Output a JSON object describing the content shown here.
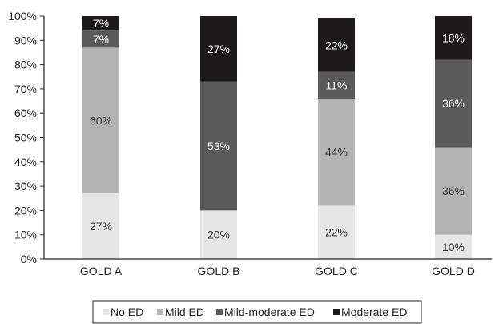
{
  "chart_data": {
    "type": "bar",
    "stacked": true,
    "categories": [
      "GOLD A",
      "GOLD B",
      "GOLD C",
      "GOLD D"
    ],
    "series": [
      {
        "name": "No ED",
        "color": "#e6e6e6",
        "label_color": "#333333",
        "values": [
          27,
          20,
          22,
          10
        ],
        "labels": [
          "27%",
          "20%",
          "22%",
          "10%"
        ]
      },
      {
        "name": "Mild ED",
        "color": "#b3b3b3",
        "label_color": "#333333",
        "values": [
          60,
          0,
          44,
          36
        ],
        "labels": [
          "60%",
          "",
          "44%",
          "36%"
        ]
      },
      {
        "name": "Mild-moderate ED",
        "color": "#5a5a5a",
        "label_color": "#ffffff",
        "values": [
          7,
          53,
          11,
          36
        ],
        "labels": [
          "7%",
          "53%",
          "11%",
          "36%"
        ]
      },
      {
        "name": "Moderate ED",
        "color": "#1e1a1b",
        "label_color": "#ffffff",
        "values": [
          7,
          27,
          22,
          18
        ],
        "labels": [
          "7%",
          "27%",
          "22%",
          "18%"
        ]
      }
    ],
    "ylim": [
      0,
      100
    ],
    "yticks": [
      "0%",
      "10%",
      "20%",
      "30%",
      "40%",
      "50%",
      "60%",
      "70%",
      "80%",
      "90%",
      "100%"
    ],
    "grid": false,
    "legend_position": "bottom",
    "title": "",
    "xlabel": "",
    "ylabel": ""
  }
}
